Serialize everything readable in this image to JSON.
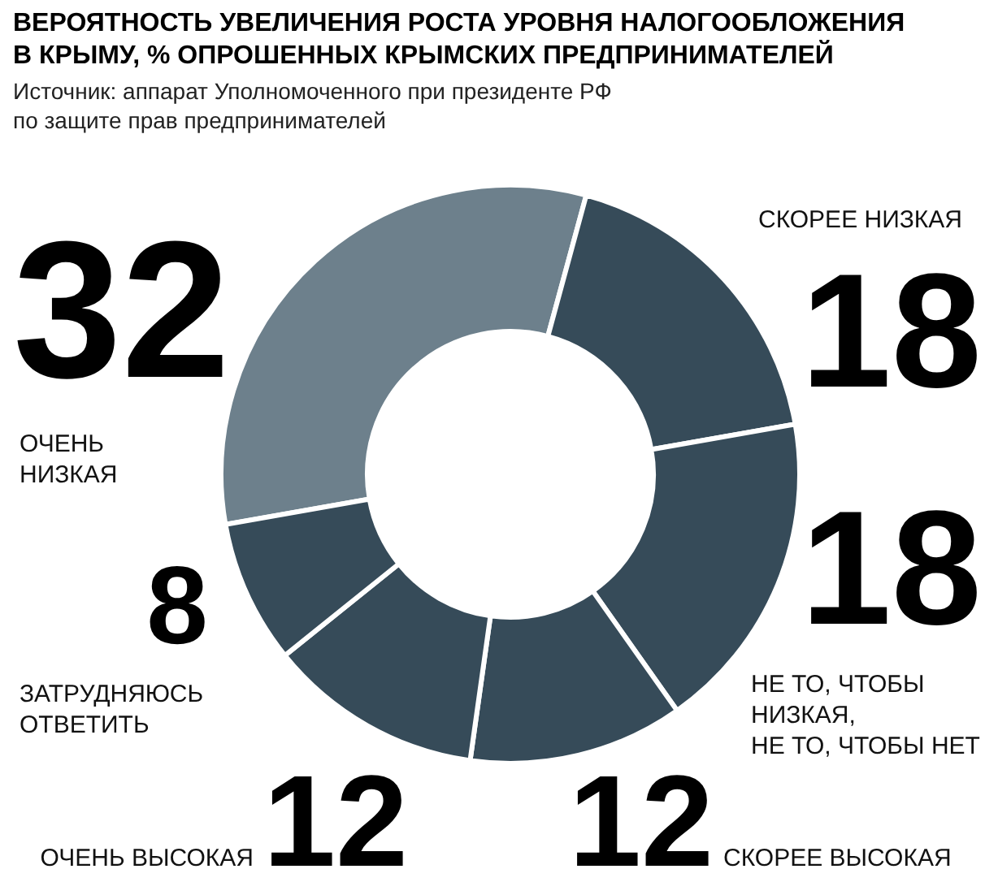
{
  "chart_data": {
    "type": "donut",
    "title": "ВЕРОЯТНОСТЬ УВЕЛИЧЕНИЯ РОСТА УРОВНЯ НАЛОГООБЛОЖЕНИЯ\nВ КРЫМУ, % ОПРОШЕННЫХ КРЫМСКИХ ПРЕДПРИНИМАТЕЛЕЙ",
    "annotations": [
      "Источник: аппарат Уполномоченного при президенте РФ\nпо защите прав предпринимателей"
    ],
    "categories": [
      "ОЧЕНЬ\nНИЗКАЯ",
      "СКОРЕЕ НИЗКАЯ",
      "НЕ ТО, ЧТОБЫ\nНИЗКАЯ,\nНЕ ТО, ЧТОБЫ НЕТ",
      "СКОРЕЕ ВЫСОКАЯ",
      "ОЧЕНЬ ВЫСОКАЯ",
      "ЗАТРУДНЯЮСЬ\nОТВЕТИТЬ"
    ],
    "values": [
      32,
      18,
      18,
      12,
      12,
      8
    ],
    "colors": [
      "#6d808c",
      "#364b59",
      "#364b59",
      "#364b59",
      "#364b59",
      "#364b59"
    ],
    "data_labels": true
  }
}
